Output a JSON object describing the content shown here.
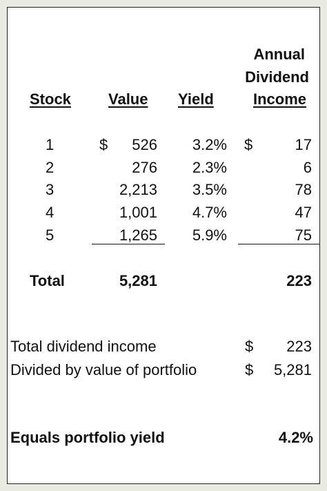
{
  "header": {
    "col_annual_line1": "Annual",
    "col_annual_line2": "Dividend",
    "stock": "Stock",
    "value": "Value",
    "yield": "Yield",
    "income": "Income"
  },
  "rows": [
    {
      "stock": "1",
      "value_sym": "$",
      "value": "526",
      "yield": "3.2%",
      "income_sym": "$",
      "income": "17"
    },
    {
      "stock": "2",
      "value": "276",
      "yield": "2.3%",
      "income": "6"
    },
    {
      "stock": "3",
      "value": "2,213",
      "yield": "3.5%",
      "income": "78"
    },
    {
      "stock": "4",
      "value": "1,001",
      "yield": "4.7%",
      "income": "47"
    },
    {
      "stock": "5",
      "value": "1,265",
      "yield": "5.9%",
      "income": "75"
    }
  ],
  "total": {
    "label": "Total",
    "value": "5,281",
    "income": "223"
  },
  "summary": {
    "total_income_label": "Total dividend income",
    "total_income_sym": "$",
    "total_income_value": "223",
    "divided_label": "Divided by value of portfolio",
    "divided_sym": "$",
    "divided_value": "5,281"
  },
  "result": {
    "label": "Equals portfolio yield",
    "value": "4.2%"
  }
}
